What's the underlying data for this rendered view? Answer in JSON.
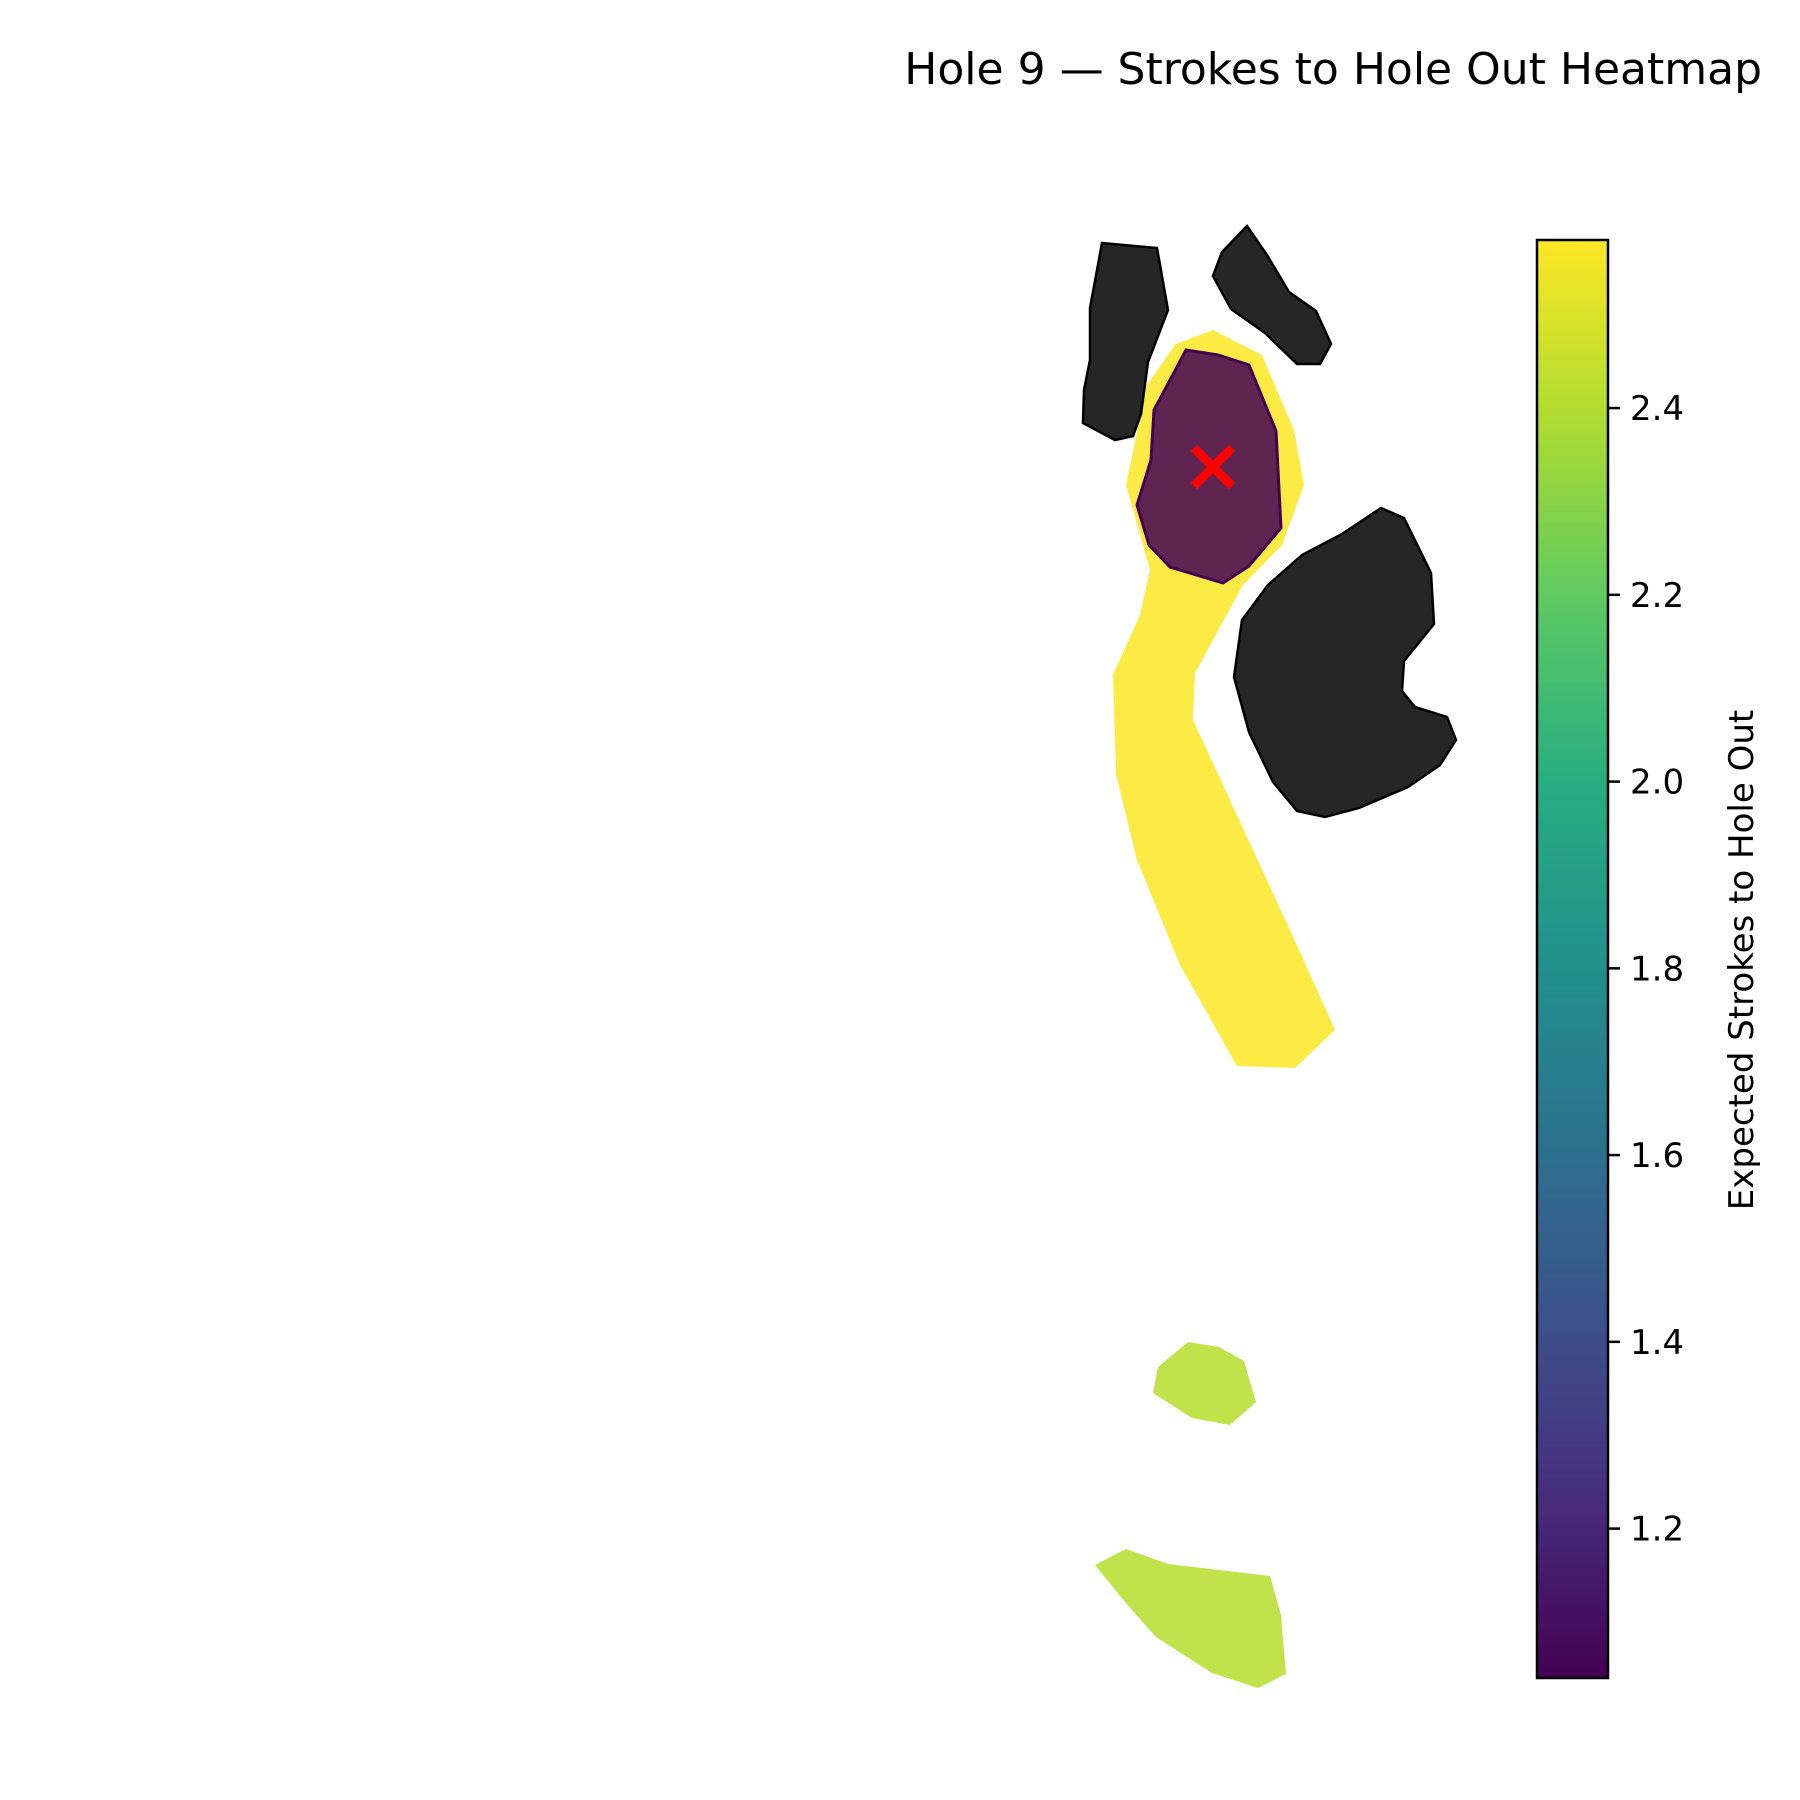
{
  "chart_data": {
    "type": "heatmap",
    "title": "Hole 9 — Strokes to Hole Out Heatmap",
    "colorbar": {
      "label": "Expected Strokes to Hole Out",
      "colormap": "viridis",
      "range": [
        1.04,
        2.58
      ],
      "ticks": [
        "1.2",
        "1.4",
        "1.6",
        "1.8",
        "2.0",
        "2.2",
        "2.4"
      ],
      "tick_values": [
        1.2,
        1.4,
        1.6,
        1.8,
        2.0,
        2.2,
        2.4
      ]
    },
    "regions": [
      {
        "name": "fairway",
        "expected_strokes": 2.58,
        "color": "#fde725"
      },
      {
        "name": "green",
        "expected_strokes": 1.04,
        "color": "#440154"
      },
      {
        "name": "tee-area-1",
        "expected_strokes": 2.45,
        "color": "#b5de2b"
      },
      {
        "name": "tee-area-2",
        "expected_strokes": 2.45,
        "color": "#b5de2b"
      },
      {
        "name": "hazard-1",
        "color": "#1a1a1a"
      },
      {
        "name": "hazard-2",
        "color": "#1a1a1a"
      },
      {
        "name": "hazard-3",
        "color": "#1a1a1a"
      }
    ],
    "pin_marker": {
      "symbol": "x",
      "color": "#ff0000"
    },
    "axes_visible": false
  }
}
